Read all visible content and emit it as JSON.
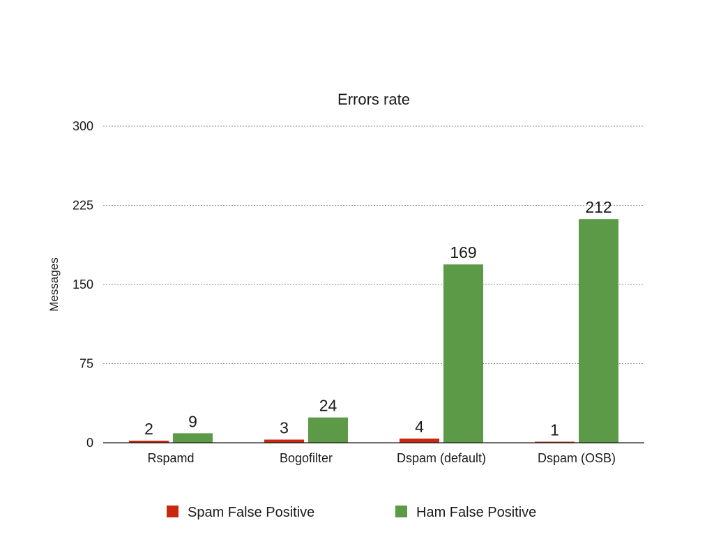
{
  "chart_data": {
    "type": "bar",
    "title": "Errors rate",
    "xlabel": "",
    "ylabel": "Messages",
    "ylim": [
      0,
      300
    ],
    "yticks": [
      0,
      75,
      150,
      225,
      300
    ],
    "grid": true,
    "legend_position": "bottom",
    "categories": [
      "Rspamd",
      "Bogofilter",
      "Dspam (default)",
      "Dspam (OSB)"
    ],
    "series": [
      {
        "name": "Spam False Positive",
        "color": "#c8280e",
        "values": [
          2,
          3,
          4,
          1
        ]
      },
      {
        "name": "Ham False Positive",
        "color": "#5c9a47",
        "values": [
          9,
          24,
          169,
          212
        ]
      }
    ]
  }
}
